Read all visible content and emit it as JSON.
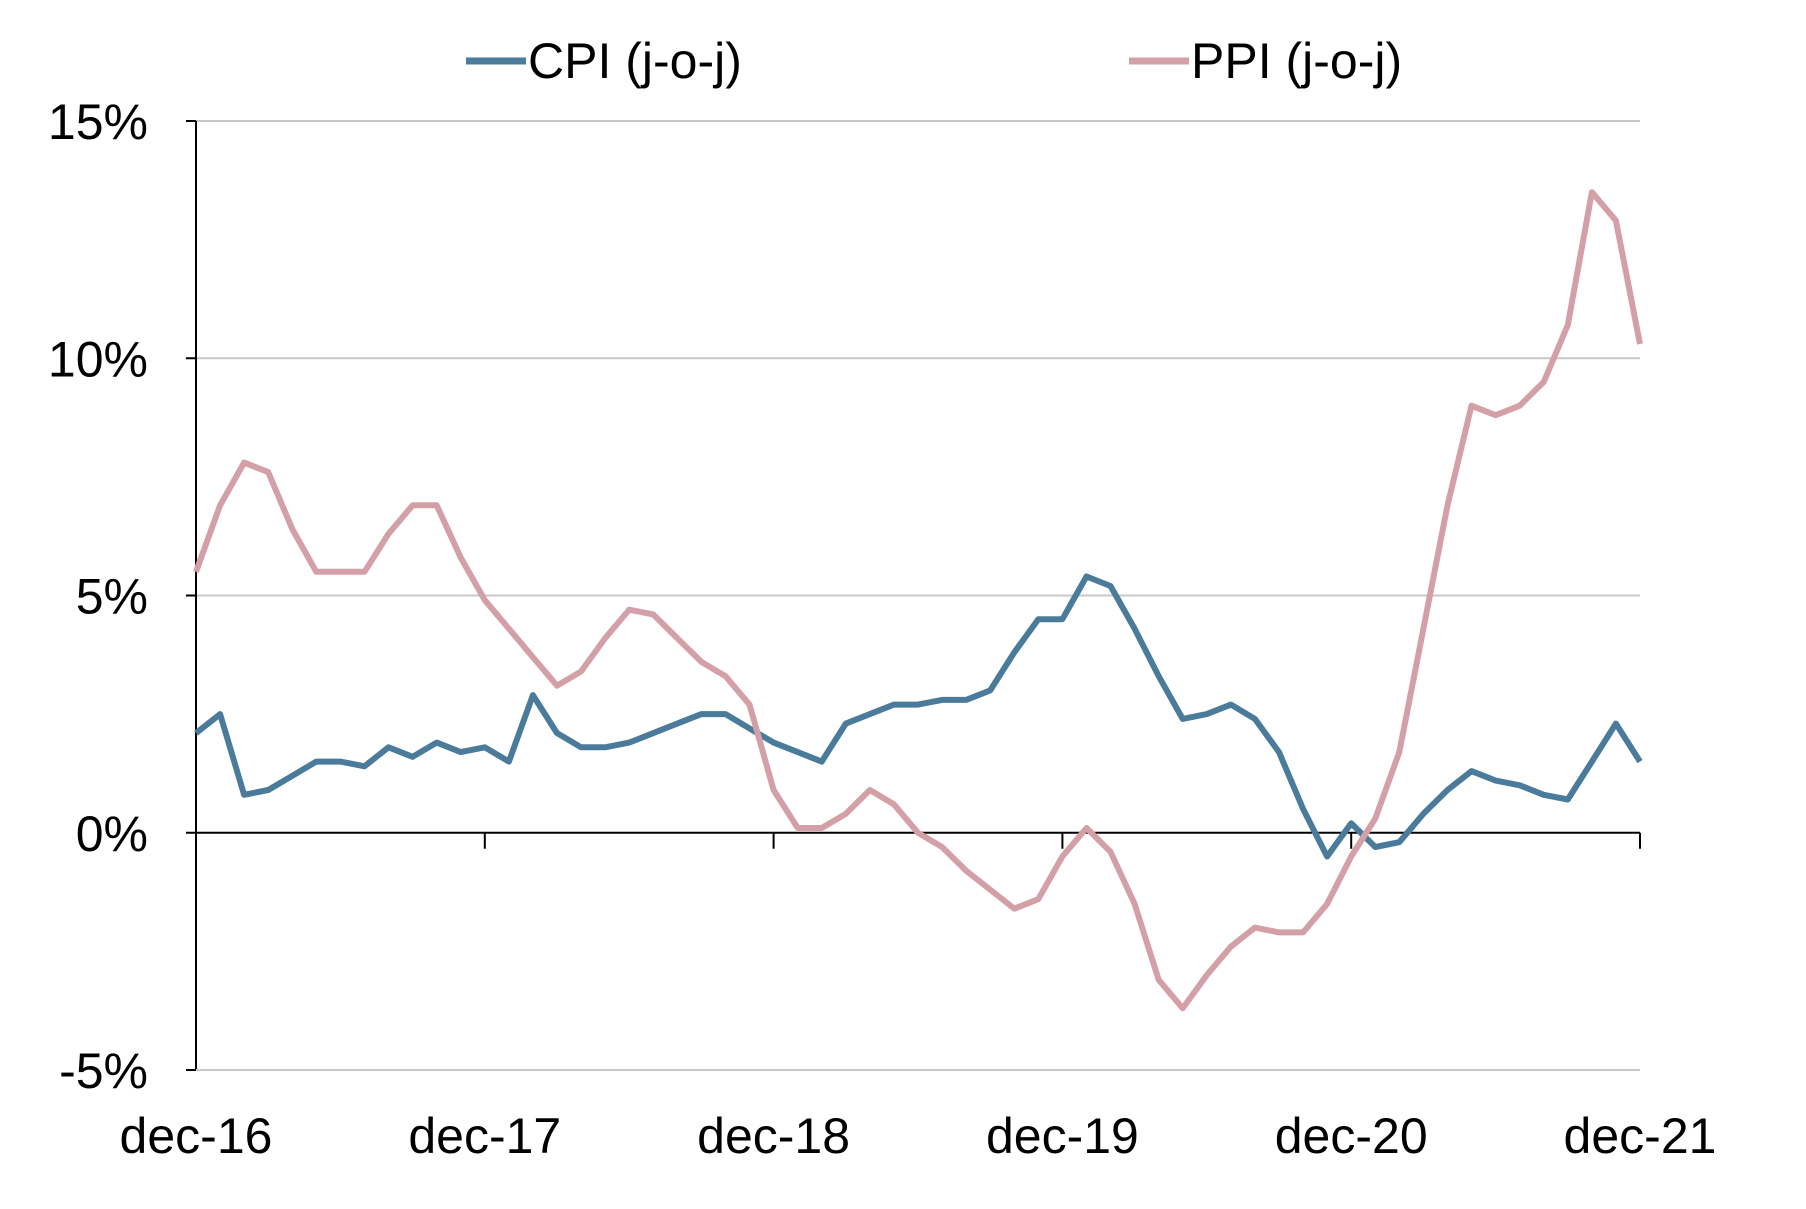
{
  "chart_data": {
    "type": "line",
    "title": "",
    "xlabel": "",
    "ylabel": "",
    "x_tick_labels": [
      "dec-16",
      "dec-17",
      "dec-18",
      "dec-19",
      "dec-20",
      "dec-21"
    ],
    "y_tick_labels": [
      "15%",
      "10%",
      "5%",
      "0%",
      "-5%"
    ],
    "y_ticks": [
      15,
      10,
      5,
      0,
      -5
    ],
    "ylim": [
      -5,
      15
    ],
    "grid": "horizontal",
    "legend_position": "top",
    "x": [
      "2016-12",
      "2017-01",
      "2017-02",
      "2017-03",
      "2017-04",
      "2017-05",
      "2017-06",
      "2017-07",
      "2017-08",
      "2017-09",
      "2017-10",
      "2017-11",
      "2017-12",
      "2018-01",
      "2018-02",
      "2018-03",
      "2018-04",
      "2018-05",
      "2018-06",
      "2018-07",
      "2018-08",
      "2018-09",
      "2018-10",
      "2018-11",
      "2018-12",
      "2019-01",
      "2019-02",
      "2019-03",
      "2019-04",
      "2019-05",
      "2019-06",
      "2019-07",
      "2019-08",
      "2019-09",
      "2019-10",
      "2019-11",
      "2019-12",
      "2020-01",
      "2020-02",
      "2020-03",
      "2020-04",
      "2020-05",
      "2020-06",
      "2020-07",
      "2020-08",
      "2020-09",
      "2020-10",
      "2020-11",
      "2020-12",
      "2021-01",
      "2021-02",
      "2021-03",
      "2021-04",
      "2021-05",
      "2021-06",
      "2021-07",
      "2021-08",
      "2021-09",
      "2021-10",
      "2021-11",
      "2021-12"
    ],
    "series": [
      {
        "name": "CPI (j-o-j)",
        "color": "#4a7b9a",
        "values": [
          2.1,
          2.5,
          0.8,
          0.9,
          1.2,
          1.5,
          1.5,
          1.4,
          1.8,
          1.6,
          1.9,
          1.7,
          1.8,
          1.5,
          2.9,
          2.1,
          1.8,
          1.8,
          1.9,
          2.1,
          2.3,
          2.5,
          2.5,
          2.2,
          1.9,
          1.7,
          1.5,
          2.3,
          2.5,
          2.7,
          2.7,
          2.8,
          2.8,
          3.0,
          3.8,
          4.5,
          4.5,
          5.4,
          5.2,
          4.3,
          3.3,
          2.4,
          2.5,
          2.7,
          2.4,
          1.7,
          0.5,
          -0.5,
          0.2,
          -0.3,
          -0.2,
          0.4,
          0.9,
          1.3,
          1.1,
          1.0,
          0.8,
          0.7,
          1.5,
          2.3,
          1.5
        ]
      },
      {
        "name": "PPI (j-o-j)",
        "color": "#d4a0a7",
        "values": [
          5.5,
          6.9,
          7.8,
          7.6,
          6.4,
          5.5,
          5.5,
          5.5,
          6.3,
          6.9,
          6.9,
          5.8,
          4.9,
          4.3,
          3.7,
          3.1,
          3.4,
          4.1,
          4.7,
          4.6,
          4.1,
          3.6,
          3.3,
          2.7,
          0.9,
          0.1,
          0.1,
          0.4,
          0.9,
          0.6,
          0.0,
          -0.3,
          -0.8,
          -1.2,
          -1.6,
          -1.4,
          -0.5,
          0.1,
          -0.4,
          -1.5,
          -3.1,
          -3.7,
          -3.0,
          -2.4,
          -2.0,
          -2.1,
          -2.1,
          -1.5,
          -0.5,
          0.3,
          1.7,
          4.3,
          6.9,
          9.0,
          8.8,
          9.0,
          9.5,
          10.7,
          13.5,
          12.9,
          10.3
        ]
      }
    ]
  }
}
